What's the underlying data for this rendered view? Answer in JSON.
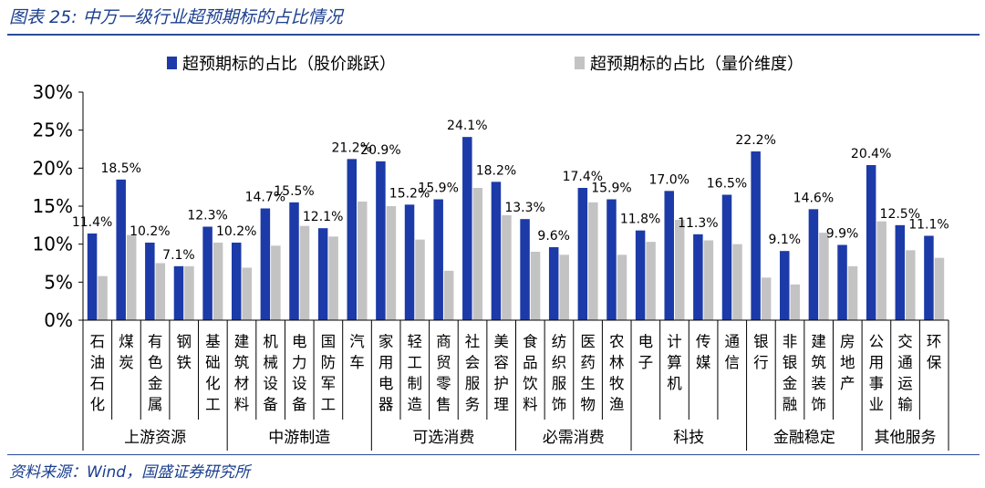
{
  "figure": {
    "title": "图表 25:  中万一级行业超预期标的占比情况",
    "source": "资料来源：Wind，国盛证券研究所"
  },
  "colors": {
    "series1": "#1c3aa8",
    "series2": "#c3c3c3",
    "axis": "#000000",
    "title": "#1b3f8f"
  },
  "chart_data": {
    "type": "bar",
    "title": "",
    "ylabel": "",
    "xlabel": "",
    "ylim": [
      0,
      30
    ],
    "yticks": [
      "0%",
      "5%",
      "10%",
      "15%",
      "20%",
      "25%",
      "30%"
    ],
    "categories": [
      "石油石化",
      "煤炭",
      "有色金属",
      "钢铁",
      "基础化工",
      "建筑材料",
      "机械设备",
      "电力设备",
      "国防军工",
      "汽车",
      "家用电器",
      "轻工制造",
      "商贸零售",
      "社会服务",
      "美容护理",
      "食品饮料",
      "纺织服饰",
      "医药生物",
      "农林牧渔",
      "电子",
      "计算机",
      "传媒",
      "通信",
      "银行",
      "非银金融",
      "建筑装饰",
      "房地产",
      "公用事业",
      "交通运输",
      "环保"
    ],
    "groups": [
      {
        "name": "上游资源",
        "count": 5
      },
      {
        "name": "中游制造",
        "count": 5
      },
      {
        "name": "可选消费",
        "count": 5
      },
      {
        "name": "必需消费",
        "count": 4
      },
      {
        "name": "科技",
        "count": 4
      },
      {
        "name": "金融稳定",
        "count": 4
      },
      {
        "name": "其他服务",
        "count": 3
      }
    ],
    "series": [
      {
        "name": "超预期标的占比（股价跳跃）",
        "values": [
          11.4,
          18.5,
          10.2,
          7.1,
          12.3,
          10.2,
          14.7,
          15.5,
          12.1,
          21.2,
          20.9,
          15.2,
          15.9,
          24.1,
          18.2,
          13.3,
          9.6,
          17.4,
          15.9,
          11.8,
          17.0,
          11.3,
          16.5,
          22.2,
          9.1,
          14.6,
          9.9,
          20.4,
          12.5,
          11.1
        ],
        "labels": [
          "11.4%",
          "18.5%",
          "10.2%",
          "7.1%",
          "12.3%",
          "10.2%",
          "14.7%",
          "15.5%",
          "12.1%",
          "21.2%",
          "20.9%",
          "15.2%",
          "15.9%",
          "24.1%",
          "18.2%",
          "13.3%",
          "9.6%",
          "17.4%",
          "15.9%",
          "11.8%",
          "17.0%",
          "11.3%",
          "16.5%",
          "22.2%",
          "9.1%",
          "14.6%",
          "9.9%",
          "20.4%",
          "12.5%",
          "11.1%"
        ]
      },
      {
        "name": "超预期标的占比（量价维度）",
        "values": [
          5.8,
          11.2,
          7.5,
          7.1,
          10.2,
          6.9,
          9.8,
          12.4,
          11.0,
          15.6,
          15.0,
          10.6,
          6.5,
          17.4,
          13.8,
          9.0,
          8.6,
          15.5,
          8.6,
          10.3,
          13.2,
          10.5,
          10.0,
          5.6,
          4.7,
          11.5,
          7.1,
          13.0,
          9.2,
          8.2
        ]
      }
    ]
  }
}
